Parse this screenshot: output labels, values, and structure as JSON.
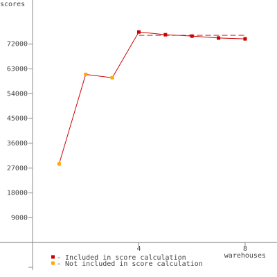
{
  "chart_data": {
    "type": "line",
    "y_label": "scores",
    "x_label": "warehouses",
    "x": [
      1,
      2,
      3,
      4,
      5,
      6,
      7,
      8
    ],
    "series": [
      {
        "name": "scores",
        "color": "#cc0000",
        "values": [
          28500,
          61000,
          59800,
          76400,
          75400,
          74900,
          74200,
          73900
        ],
        "point_colors": [
          "#ffaa00",
          "#ffaa00",
          "#ffaa00",
          "#cc0000",
          "#cc0000",
          "#cc0000",
          "#cc0000",
          "#cc0000"
        ]
      }
    ],
    "reference_line": {
      "value": 75200,
      "x": [
        4,
        8
      ],
      "color": "#cc0000"
    },
    "xlim": [
      0,
      9.2
    ],
    "ylim": [
      -10000,
      88000
    ],
    "xticks": [
      4,
      8
    ],
    "yticks": [
      9000,
      18000,
      27000,
      36000,
      45000,
      54000,
      63000,
      72000
    ],
    "yticks_unlabeled": [
      -9000
    ],
    "legend": [
      {
        "label": "- Included in score calculation",
        "color": "#cc0000"
      },
      {
        "label": "- Not included in score calculation",
        "color": "#ffaa00"
      }
    ]
  }
}
